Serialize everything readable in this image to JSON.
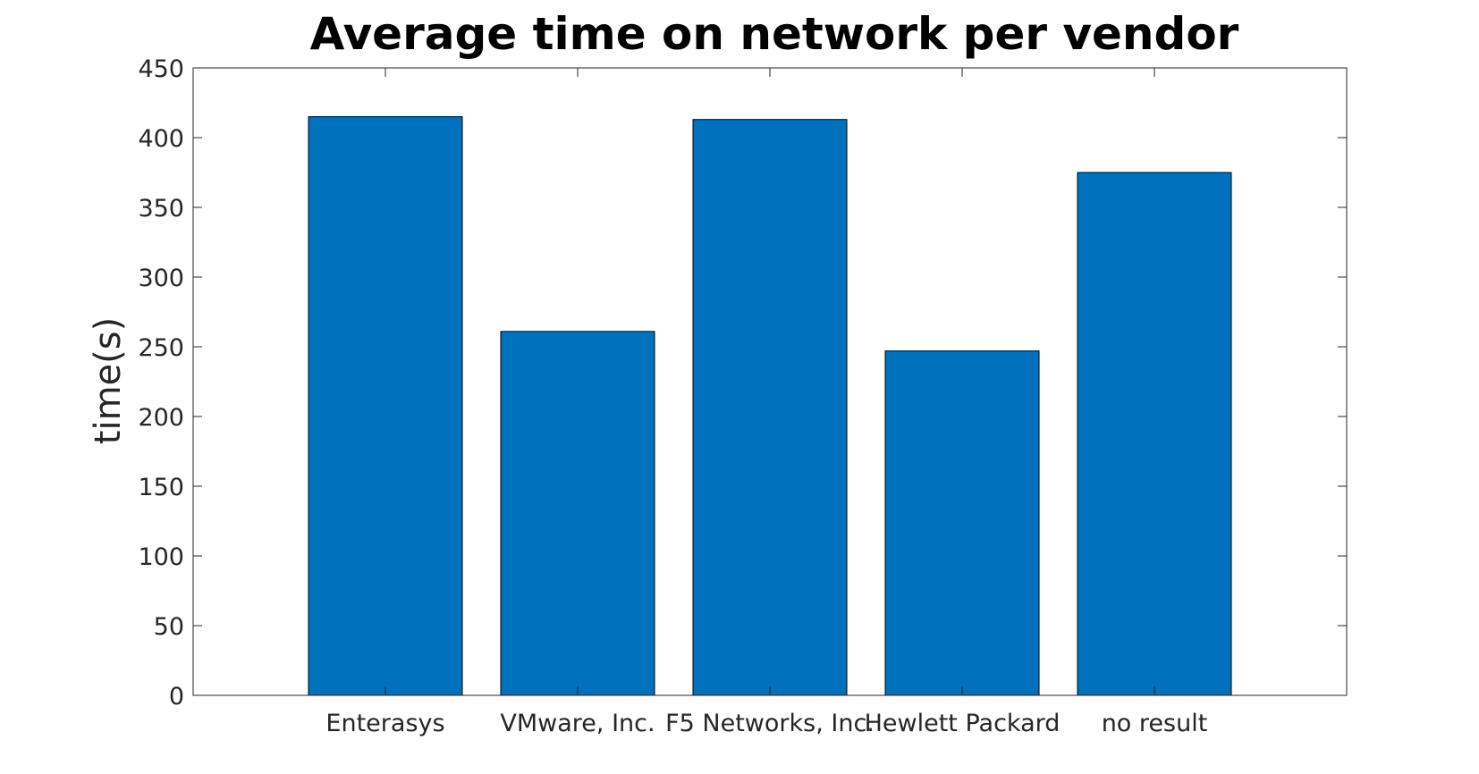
{
  "chart_data": {
    "type": "bar",
    "title": "Average time on network per vendor",
    "xlabel": "",
    "ylabel": "time(s)",
    "categories": [
      "Enterasys",
      "VMware, Inc.",
      "F5 Networks, Inc.",
      "Hewlett Packard",
      "no result"
    ],
    "values": [
      415,
      261,
      413,
      247,
      375
    ],
    "ylim": [
      0,
      450
    ],
    "yticks": [
      0,
      50,
      100,
      150,
      200,
      250,
      300,
      350,
      400,
      450
    ],
    "xlim": [
      0,
      6
    ],
    "bar_color": "#0072bd",
    "grid": false,
    "legend": "none"
  }
}
